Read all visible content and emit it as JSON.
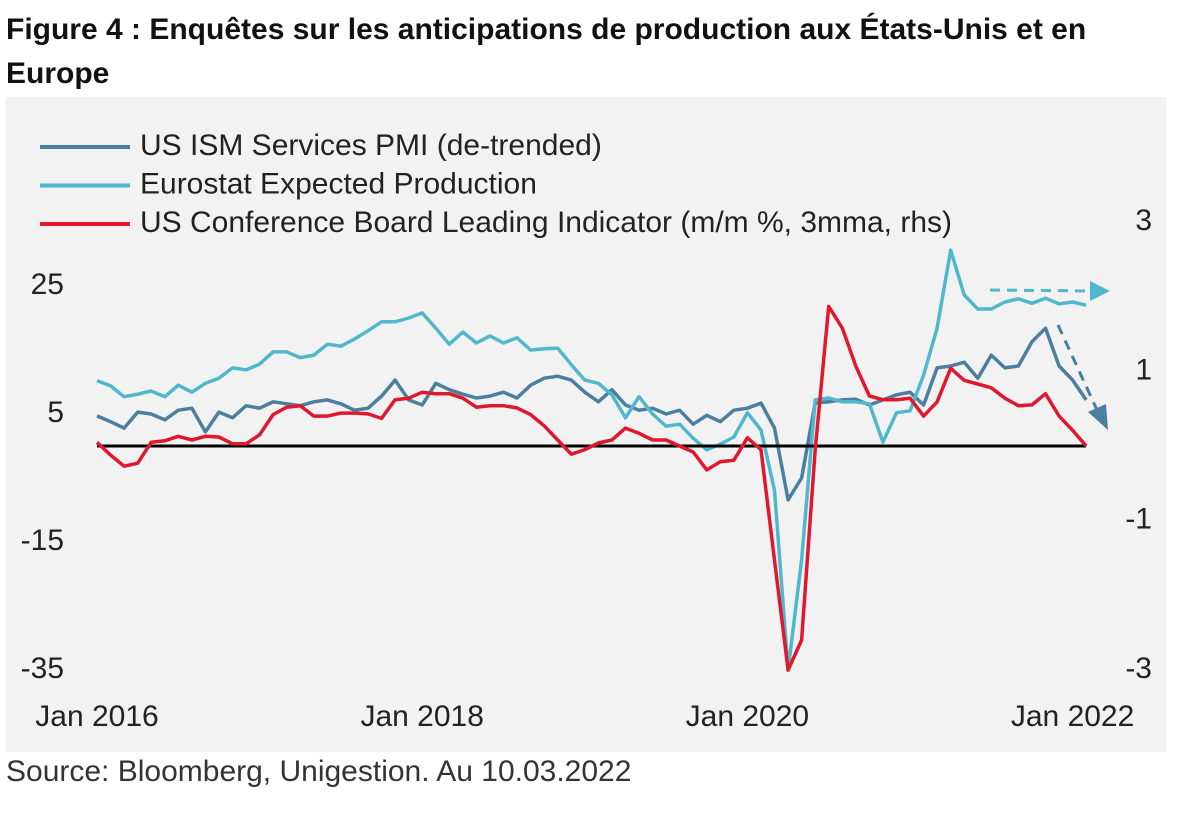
{
  "chart_data": {
    "type": "line",
    "title": "Figure 4 : Enquêtes sur les anticipations de production aux États-Unis et en Europe",
    "source": "Source: Bloomberg, Unigestion. Au 10.03.2022",
    "x": [
      "2016-01",
      "2016-02",
      "2016-03",
      "2016-04",
      "2016-05",
      "2016-06",
      "2016-07",
      "2016-08",
      "2016-09",
      "2016-10",
      "2016-11",
      "2016-12",
      "2017-01",
      "2017-02",
      "2017-03",
      "2017-04",
      "2017-05",
      "2017-06",
      "2017-07",
      "2017-08",
      "2017-09",
      "2017-10",
      "2017-11",
      "2017-12",
      "2018-01",
      "2018-02",
      "2018-03",
      "2018-04",
      "2018-05",
      "2018-06",
      "2018-07",
      "2018-08",
      "2018-09",
      "2018-10",
      "2018-11",
      "2018-12",
      "2019-01",
      "2019-02",
      "2019-03",
      "2019-04",
      "2019-05",
      "2019-06",
      "2019-07",
      "2019-08",
      "2019-09",
      "2019-10",
      "2019-11",
      "2019-12",
      "2020-01",
      "2020-02",
      "2020-03",
      "2020-04",
      "2020-05",
      "2020-06",
      "2020-07",
      "2020-08",
      "2020-09",
      "2020-10",
      "2020-11",
      "2020-12",
      "2021-01",
      "2021-02",
      "2021-03",
      "2021-04",
      "2021-05",
      "2021-06",
      "2021-07",
      "2021-08",
      "2021-09",
      "2021-10",
      "2021-11",
      "2021-12",
      "2022-01",
      "2022-02"
    ],
    "xticks": [
      {
        "value": "2016-01",
        "label": "Jan 2016"
      },
      {
        "value": "2018-01",
        "label": "Jan 2018"
      },
      {
        "value": "2020-01",
        "label": "Jan 2020"
      },
      {
        "value": "2022-01",
        "label": "Jan 2022"
      }
    ],
    "ylim": [
      -35,
      35
    ],
    "yticks": [
      25,
      5,
      -15,
      -35
    ],
    "y2lim": [
      -3,
      3
    ],
    "y2ticks": [
      3,
      1,
      -1,
      -3
    ],
    "hline": 0,
    "legend": "top-left",
    "series": [
      {
        "name": "US ISM Services PMI (de-trended)",
        "color": "#4a7fa0",
        "values": [
          4.7,
          3.8,
          2.8,
          5.3,
          5.0,
          4.1,
          5.6,
          5.9,
          2.2,
          5.3,
          4.4,
          6.3,
          5.9,
          6.9,
          6.6,
          6.3,
          6.9,
          7.2,
          6.6,
          5.6,
          5.9,
          7.8,
          10.3,
          7.2,
          6.4,
          9.8,
          8.8,
          8.1,
          7.5,
          7.8,
          8.4,
          7.5,
          9.5,
          10.6,
          10.9,
          10.3,
          8.4,
          6.9,
          8.8,
          6.4,
          5.6,
          5.9,
          5.0,
          5.6,
          3.4,
          4.8,
          3.8,
          5.6,
          5.9,
          6.7,
          2.8,
          -8.4,
          -5.0,
          6.7,
          6.9,
          7.2,
          7.3,
          6.4,
          7.2,
          8.0,
          8.4,
          6.4,
          12.2,
          12.5,
          13.1,
          10.6,
          14.2,
          12.2,
          12.5,
          16.3,
          18.4,
          12.5,
          10.3,
          7.2
        ]
      },
      {
        "name": "Eurostat Expected Production",
        "color": "#4fb8cc",
        "values": [
          10.2,
          9.4,
          7.7,
          8.1,
          8.6,
          7.7,
          9.5,
          8.4,
          9.8,
          10.6,
          12.2,
          11.9,
          12.8,
          14.7,
          14.7,
          13.8,
          14.2,
          15.9,
          15.6,
          16.7,
          18.0,
          19.4,
          19.4,
          20.0,
          20.8,
          18.4,
          15.9,
          17.8,
          16.1,
          17.2,
          16.1,
          16.9,
          15.0,
          15.2,
          15.3,
          12.7,
          10.3,
          9.8,
          8.0,
          4.4,
          7.7,
          5.0,
          3.1,
          3.4,
          1.2,
          -0.6,
          0.3,
          1.4,
          5.2,
          2.5,
          -6.9,
          -35.0,
          -17.8,
          7.2,
          7.5,
          6.9,
          6.9,
          6.6,
          0.6,
          5.2,
          5.5,
          11.1,
          18.4,
          30.6,
          23.6,
          21.4,
          21.4,
          22.5,
          23.0,
          22.3,
          23.1,
          22.2,
          22.5,
          22.0
        ]
      },
      {
        "name": "US Conference Board Leading Indicator (m/m %, 3mma, rhs)",
        "color": "#e0182d",
        "axis": "y2",
        "values": [
          0.05,
          -0.12,
          -0.27,
          -0.23,
          0.05,
          0.07,
          0.13,
          0.08,
          0.13,
          0.12,
          0.03,
          0.03,
          0.15,
          0.42,
          0.52,
          0.54,
          0.4,
          0.4,
          0.44,
          0.44,
          0.43,
          0.37,
          0.62,
          0.64,
          0.72,
          0.7,
          0.7,
          0.64,
          0.52,
          0.54,
          0.54,
          0.51,
          0.42,
          0.27,
          0.08,
          -0.11,
          -0.05,
          0.04,
          0.08,
          0.24,
          0.17,
          0.08,
          0.08,
          0.0,
          -0.08,
          -0.32,
          -0.21,
          -0.19,
          0.11,
          -0.05,
          -1.53,
          -3.0,
          -2.6,
          -0.05,
          1.87,
          1.58,
          1.07,
          0.67,
          0.62,
          0.62,
          0.64,
          0.4,
          0.59,
          1.04,
          0.88,
          0.83,
          0.78,
          0.64,
          0.54,
          0.55,
          0.7,
          0.4,
          0.21,
          0.0
        ]
      }
    ]
  }
}
